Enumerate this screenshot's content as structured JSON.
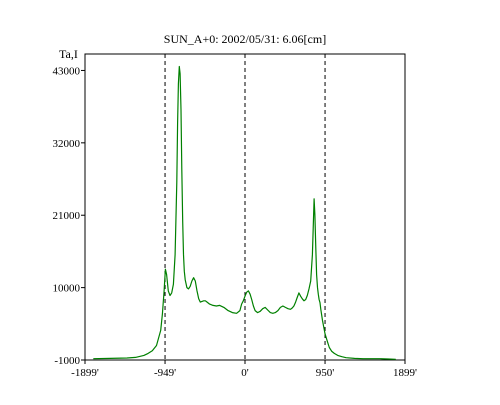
{
  "chart_data": {
    "type": "line",
    "title": "SUN_A+0: 2002/05/31: 6.06[cm]",
    "ylabel": "Ta,I",
    "xlabel": "",
    "xlim": [
      -1899,
      1899
    ],
    "ylim": [
      -1000,
      45500
    ],
    "grid": false,
    "legend": "none",
    "x_ticks": [
      {
        "value": -1899,
        "label": "-1899'"
      },
      {
        "value": -949,
        "label": "-949'"
      },
      {
        "value": 0,
        "label": "0'"
      },
      {
        "value": 950,
        "label": "950'"
      },
      {
        "value": 1899,
        "label": "1899'"
      }
    ],
    "y_ticks": [
      {
        "value": -1000,
        "label": "-1000"
      },
      {
        "value": 10000,
        "label": "10000"
      },
      {
        "value": 21000,
        "label": "21000"
      },
      {
        "value": 32000,
        "label": "32000"
      },
      {
        "value": 43000,
        "label": "43000"
      }
    ],
    "vlines": [
      -949,
      0,
      950
    ],
    "series": [
      {
        "color": "#008000",
        "x": [
          -1800,
          -1600,
          -1400,
          -1300,
          -1200,
          -1150,
          -1100,
          -1050,
          -1000,
          -980,
          -960,
          -945,
          -930,
          -910,
          -890,
          -870,
          -850,
          -830,
          -810,
          -800,
          -790,
          -780,
          -770,
          -760,
          -750,
          -740,
          -730,
          -720,
          -710,
          -690,
          -670,
          -650,
          -630,
          -610,
          -590,
          -570,
          -550,
          -530,
          -510,
          -490,
          -470,
          -450,
          -420,
          -380,
          -340,
          -300,
          -250,
          -200,
          -150,
          -100,
          -60,
          -40,
          -20,
          0,
          20,
          40,
          60,
          80,
          100,
          120,
          150,
          180,
          210,
          240,
          270,
          300,
          330,
          360,
          390,
          420,
          450,
          480,
          510,
          540,
          560,
          580,
          600,
          620,
          640,
          660,
          680,
          700,
          720,
          740,
          760,
          780,
          800,
          810,
          820,
          830,
          840,
          850,
          860,
          870,
          880,
          890,
          900,
          920,
          950,
          980,
          1000,
          1030,
          1060,
          1100,
          1150,
          1200,
          1300,
          1400,
          1500,
          1600,
          1700,
          1790
        ],
        "y": [
          -800,
          -750,
          -700,
          -600,
          -300,
          0,
          400,
          1200,
          3500,
          6000,
          9500,
          12800,
          12000,
          9500,
          8800,
          9200,
          10500,
          15000,
          26000,
          35000,
          41000,
          43600,
          42500,
          37000,
          28000,
          20000,
          15000,
          12500,
          11200,
          10000,
          9800,
          10200,
          11000,
          11500,
          11000,
          9500,
          8300,
          7800,
          7900,
          8000,
          8000,
          7800,
          7500,
          7300,
          7200,
          7300,
          7000,
          6500,
          6200,
          6100,
          6500,
          7500,
          8000,
          8700,
          9300,
          9500,
          9000,
          8200,
          7200,
          6500,
          6200,
          6400,
          6800,
          7000,
          6600,
          6200,
          6100,
          6200,
          6500,
          7000,
          7200,
          7000,
          6800,
          6700,
          6900,
          7200,
          7800,
          8500,
          9200,
          8700,
          8300,
          8000,
          8200,
          8800,
          9800,
          11000,
          15000,
          19000,
          23500,
          21000,
          16000,
          12000,
          10000,
          9000,
          8200,
          7700,
          6700,
          5000,
          3000,
          1700,
          900,
          300,
          0,
          -300,
          -500,
          -650,
          -750,
          -800,
          -800,
          -800,
          -850,
          -900
        ]
      }
    ]
  }
}
